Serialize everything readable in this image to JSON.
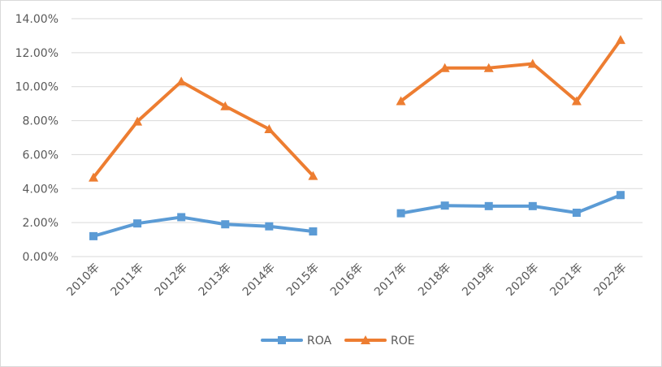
{
  "chart_data": {
    "type": "line",
    "title": "",
    "xlabel": "",
    "ylabel": "",
    "categories": [
      "2010年",
      "2011年",
      "2012年",
      "2013年",
      "2014年",
      "2015年",
      "2016年",
      "2017年",
      "2018年",
      "2019年",
      "2020年",
      "2021年",
      "2022年"
    ],
    "y_ticks": [
      "0.00%",
      "2.00%",
      "4.00%",
      "6.00%",
      "8.00%",
      "10.00%",
      "12.00%",
      "14.00%"
    ],
    "ylim": [
      0,
      14
    ],
    "grid": true,
    "legend_position": "bottom",
    "series": [
      {
        "name": "ROA",
        "color": "#5B9BD5",
        "marker": "square",
        "values": [
          1.2,
          1.95,
          2.32,
          1.9,
          1.78,
          1.48,
          null,
          2.55,
          3.0,
          2.97,
          2.97,
          2.58,
          3.62
        ]
      },
      {
        "name": "ROE",
        "color": "#ED7D31",
        "marker": "triangle",
        "values": [
          4.65,
          7.95,
          10.3,
          8.85,
          7.5,
          4.75,
          null,
          9.15,
          11.1,
          11.1,
          11.35,
          9.15,
          12.75
        ]
      }
    ]
  }
}
